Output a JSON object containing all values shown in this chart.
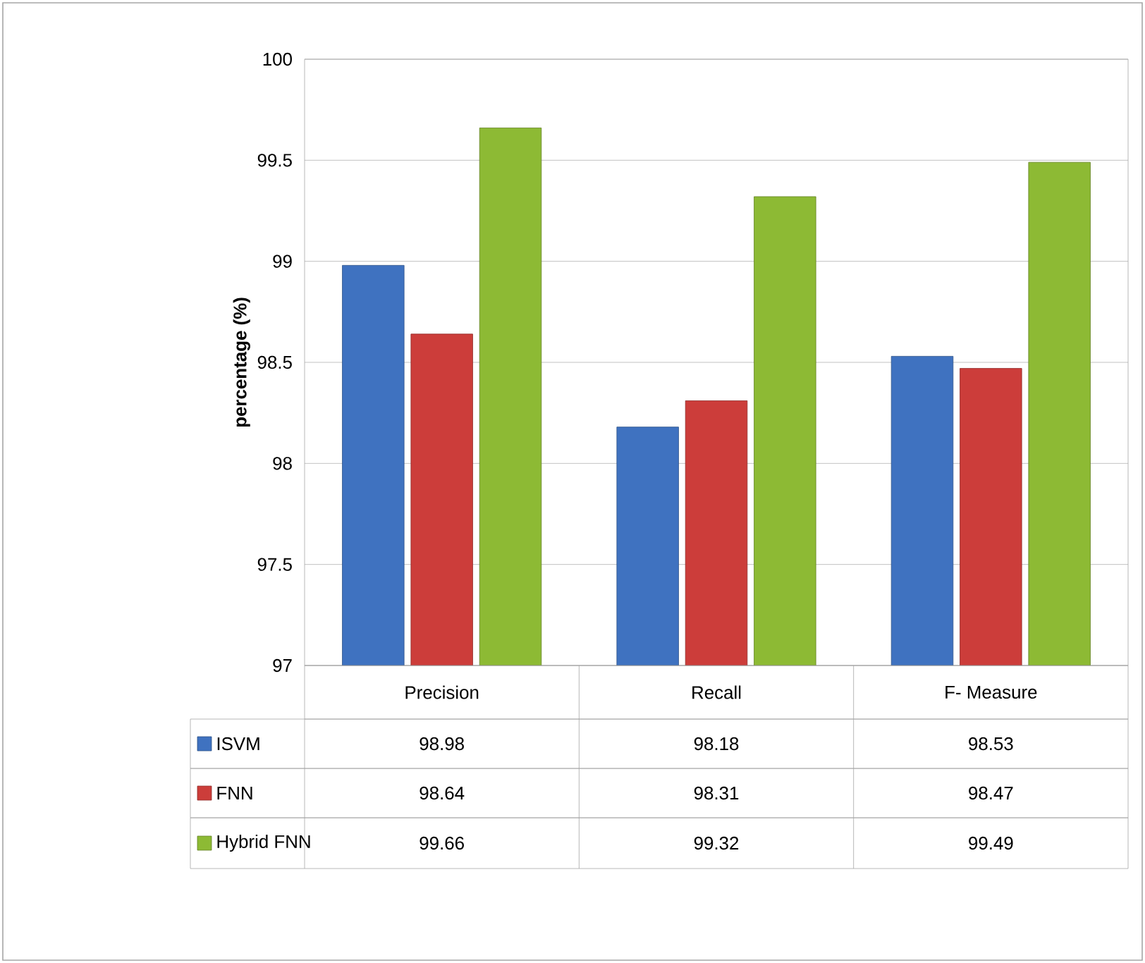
{
  "chart_data": {
    "type": "bar",
    "ylabel": "percentage (%)",
    "categories": [
      "Precision",
      "Recall",
      "F- Measure"
    ],
    "series": [
      {
        "name": "ISVM",
        "color": "#3f72c0",
        "values": [
          98.98,
          98.18,
          98.53
        ]
      },
      {
        "name": "FNN",
        "color": "#cc3d3a",
        "values": [
          98.64,
          98.31,
          98.47
        ]
      },
      {
        "name": "Hybrid FNN",
        "color": "#8dba34",
        "values": [
          99.66,
          99.32,
          99.49
        ]
      }
    ],
    "ylim": [
      97,
      100
    ],
    "yticks": [
      97,
      97.5,
      98,
      98.5,
      99,
      99.5,
      100
    ],
    "grid": "y",
    "legend": "bottom",
    "data_labels": true
  }
}
